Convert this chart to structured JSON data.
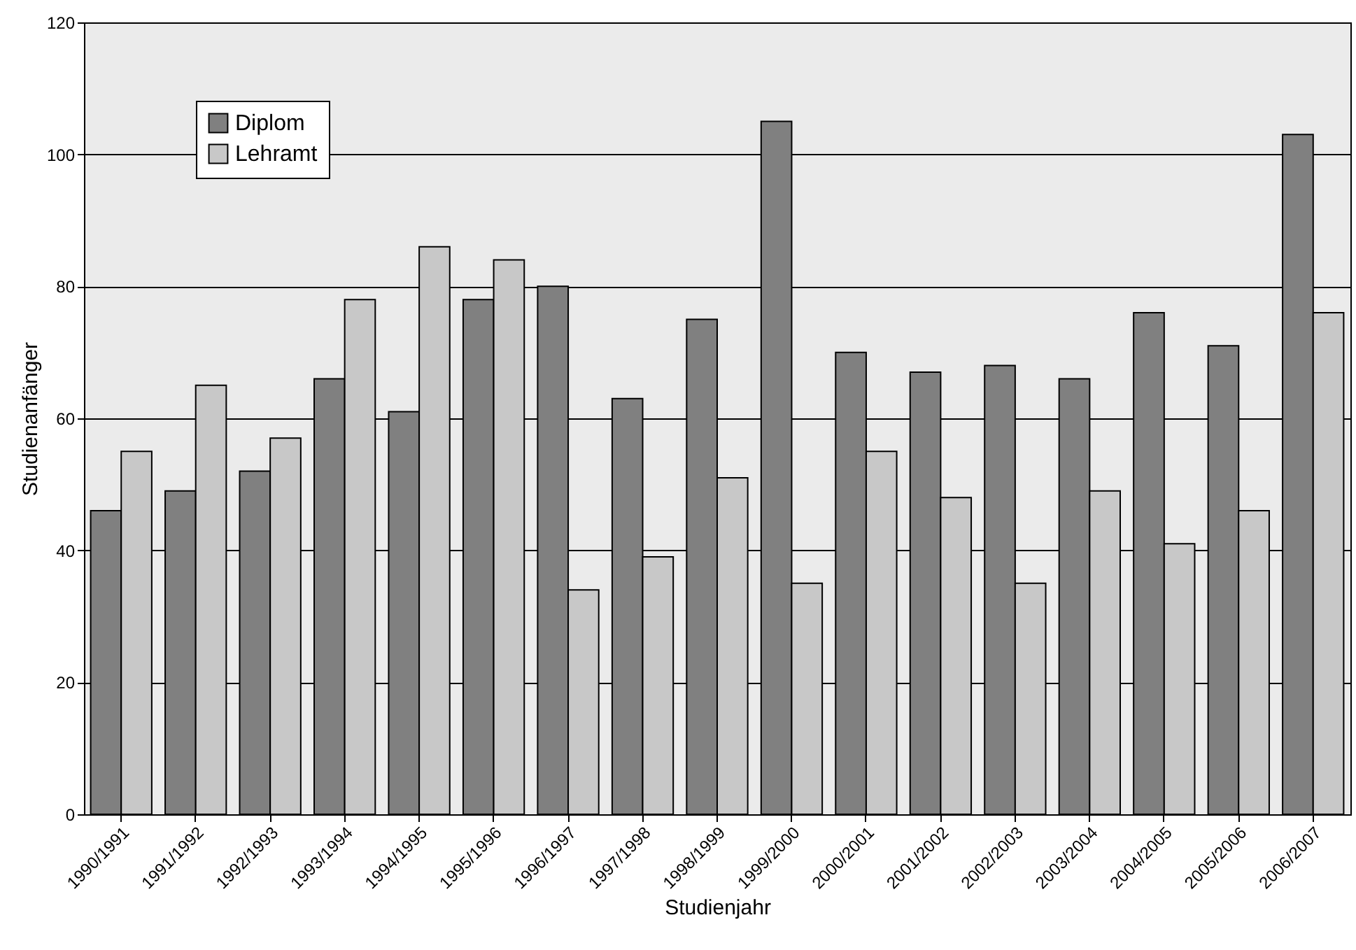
{
  "chart_data": {
    "type": "bar",
    "xlabel": "Studienjahr",
    "ylabel": "Studienanfänger",
    "categories": [
      "1990/1991",
      "1991/1992",
      "1992/1993",
      "1993/1994",
      "1994/1995",
      "1995/1996",
      "1996/1997",
      "1997/1998",
      "1998/1999",
      "1999/2000",
      "2000/2001",
      "2001/2002",
      "2002/2003",
      "2003/2004",
      "2004/2005",
      "2005/2006",
      "2006/2007"
    ],
    "series": [
      {
        "name": "Diplom",
        "color": "#808080",
        "values": [
          46,
          49,
          52,
          66,
          61,
          78,
          80,
          63,
          75,
          105,
          70,
          67,
          68,
          66,
          76,
          71,
          103
        ]
      },
      {
        "name": "Lehramt",
        "color": "#c8c8c8",
        "values": [
          55,
          65,
          57,
          78,
          86,
          84,
          34,
          39,
          51,
          35,
          55,
          48,
          35,
          49,
          41,
          46,
          76
        ]
      }
    ],
    "ylim": [
      0,
      120
    ],
    "yticks": [
      0,
      20,
      40,
      60,
      80,
      100,
      120
    ],
    "grid": "y",
    "legend": "top left"
  }
}
